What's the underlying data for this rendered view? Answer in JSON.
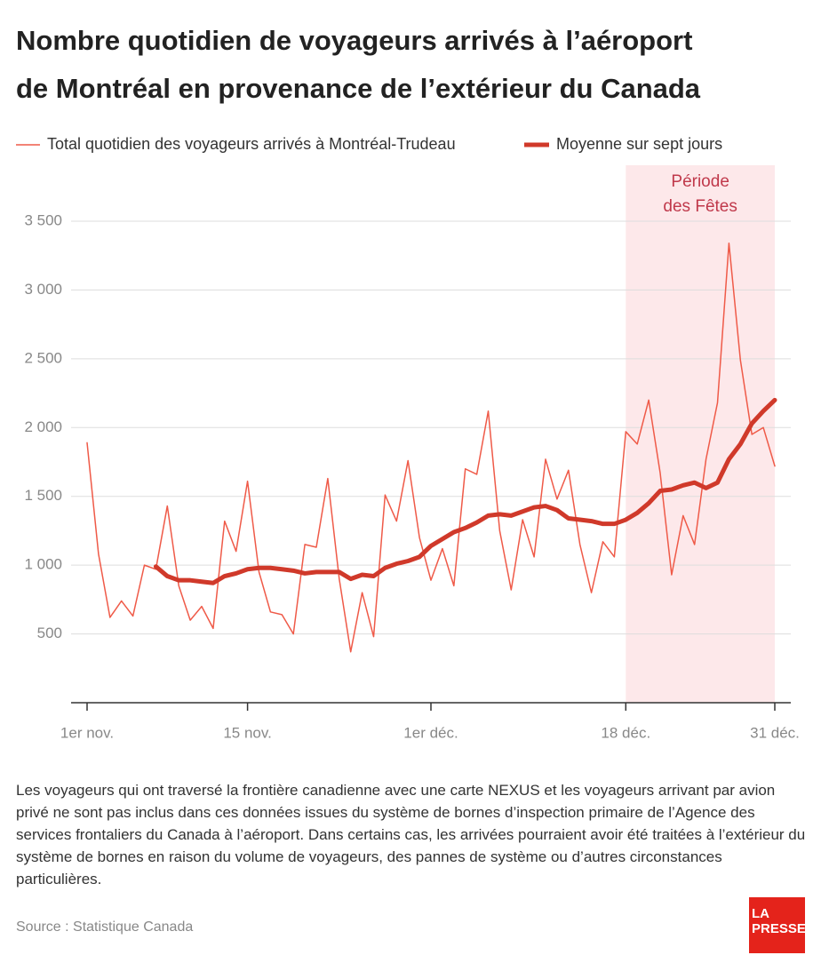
{
  "chart_data": {
    "type": "line",
    "title": [
      "Nombre quotidien de voyageurs arrivés à l’aéroport",
      "de Montréal en provenance de l’extérieur du Canada"
    ],
    "x": [
      0,
      1,
      2,
      3,
      4,
      5,
      6,
      7,
      8,
      9,
      10,
      11,
      12,
      13,
      14,
      15,
      16,
      17,
      18,
      19,
      20,
      21,
      22,
      23,
      24,
      25,
      26,
      27,
      28,
      29,
      30,
      31,
      32,
      33,
      34,
      35,
      36,
      37,
      38,
      39,
      40,
      41,
      42,
      43,
      44,
      45,
      46,
      47,
      48,
      49,
      50,
      51,
      52,
      53,
      54,
      55,
      56,
      57,
      58,
      59,
      60
    ],
    "series": [
      {
        "name": "Total quotidien des voyageurs arrivés à Montréal-Trudeau",
        "color": "#ef5a48",
        "width": 1.5,
        "values": [
          1890,
          1080,
          620,
          740,
          630,
          1000,
          970,
          1430,
          850,
          600,
          700,
          540,
          1320,
          1100,
          1610,
          950,
          660,
          640,
          500,
          1150,
          1130,
          1630,
          900,
          370,
          800,
          480,
          1510,
          1320,
          1760,
          1200,
          890,
          1120,
          850,
          1700,
          1660,
          2120,
          1250,
          820,
          1330,
          1060,
          1770,
          1480,
          1690,
          1150,
          800,
          1170,
          1060,
          1970,
          1880,
          2200,
          1670,
          930,
          1360,
          1150,
          1770,
          2180,
          3340,
          2490,
          1950,
          2000,
          1720
        ]
      },
      {
        "name": "Moyenne sur sept jours",
        "color": "#d0392a",
        "width": 5,
        "values": [
          null,
          null,
          null,
          null,
          null,
          null,
          990,
          920,
          890,
          890,
          880,
          870,
          920,
          940,
          970,
          980,
          980,
          970,
          960,
          940,
          950,
          950,
          950,
          900,
          930,
          920,
          980,
          1010,
          1030,
          1060,
          1140,
          1190,
          1240,
          1270,
          1310,
          1360,
          1370,
          1360,
          1390,
          1420,
          1430,
          1400,
          1340,
          1330,
          1320,
          1300,
          1300,
          1330,
          1380,
          1450,
          1540,
          1550,
          1580,
          1600,
          1560,
          1600,
          1770,
          1880,
          2030,
          2120,
          2200
        ]
      }
    ],
    "xlim": [
      0,
      60
    ],
    "xticks": [
      {
        "value": 0,
        "label": "1er nov."
      },
      {
        "value": 14,
        "label": "15 nov."
      },
      {
        "value": 30,
        "label": "1er déc."
      },
      {
        "value": 47,
        "label": "18 déc."
      },
      {
        "value": 60,
        "label": "31 déc."
      }
    ],
    "ylim": [
      0,
      3500
    ],
    "yticks": [
      500,
      {
        "value": 1000,
        "label": "1 000"
      },
      {
        "value": 1500,
        "label": "1 500"
      },
      {
        "value": 2000,
        "label": "2 000"
      },
      {
        "value": 2500,
        "label": "2 500"
      },
      {
        "value": 3000,
        "label": "3 000"
      },
      {
        "value": 3500,
        "label": "3 500"
      }
    ],
    "grid": true,
    "highlight": {
      "from": 47,
      "to": 60,
      "color": "#fde8ea",
      "label": [
        "Période",
        "des Fêtes"
      ]
    }
  },
  "note": "Les voyageurs qui ont traversé la frontière canadienne avec une carte NEXUS et les voyageurs arrivant par avion privé ne sont pas inclus dans ces données issues du système de bornes d’inspection primaire de l’Agence des services frontaliers du Canada à l’aéroport. Dans certains cas, les arrivées pourraient avoir été traitées à l’extérieur du système de bornes en raison du volume de voyageurs, des pannes de système ou d’autres circonstances particulières.",
  "source": "Source : Statistique Canada",
  "logo": [
    "LA",
    "PRESSE"
  ]
}
